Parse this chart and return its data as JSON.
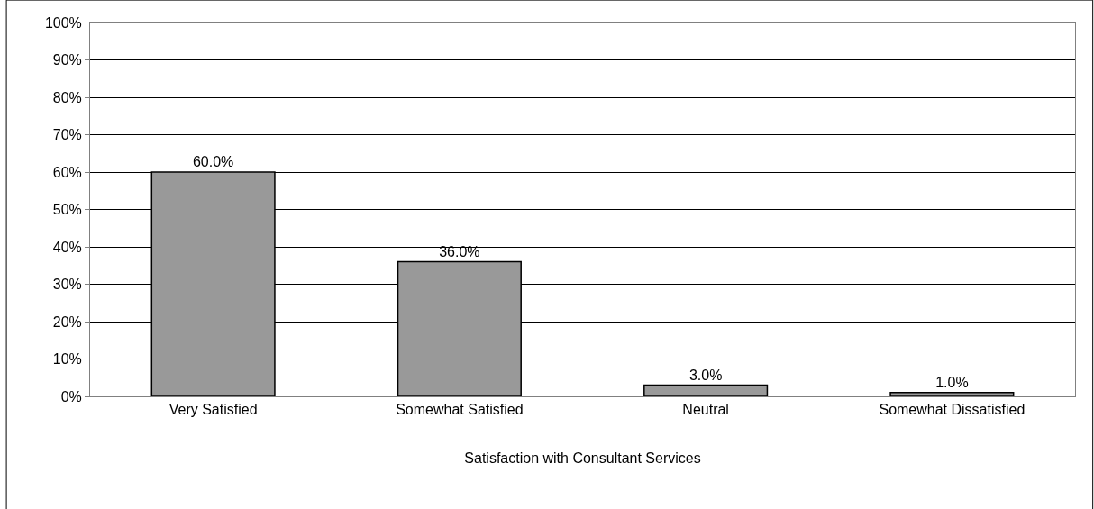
{
  "chart_data": {
    "type": "bar",
    "xlabel": "Satisfaction with Consultant Services",
    "categories": [
      "Very Satisfied",
      "Somewhat Satisfied",
      "Neutral",
      "Somewhat Dissatisfied"
    ],
    "values": [
      60,
      36,
      3,
      1
    ],
    "color": "#999999",
    "value_labels": [
      "60.0%",
      "36.0%",
      "3.0%",
      "1.0%"
    ],
    "ylim": [
      0,
      100
    ],
    "yticks": [
      {
        "value": 0,
        "label": "0%"
      },
      {
        "value": 10,
        "label": "10%"
      },
      {
        "value": 20,
        "label": "20%"
      },
      {
        "value": 30,
        "label": "30%"
      },
      {
        "value": 40,
        "label": "40%"
      },
      {
        "value": 50,
        "label": "50%"
      },
      {
        "value": 60,
        "label": "60%"
      },
      {
        "value": 70,
        "label": "70%"
      },
      {
        "value": 80,
        "label": "80%"
      },
      {
        "value": 90,
        "label": "90%"
      },
      {
        "value": 100,
        "label": "100%"
      }
    ],
    "grid": "y",
    "legend": false
  }
}
